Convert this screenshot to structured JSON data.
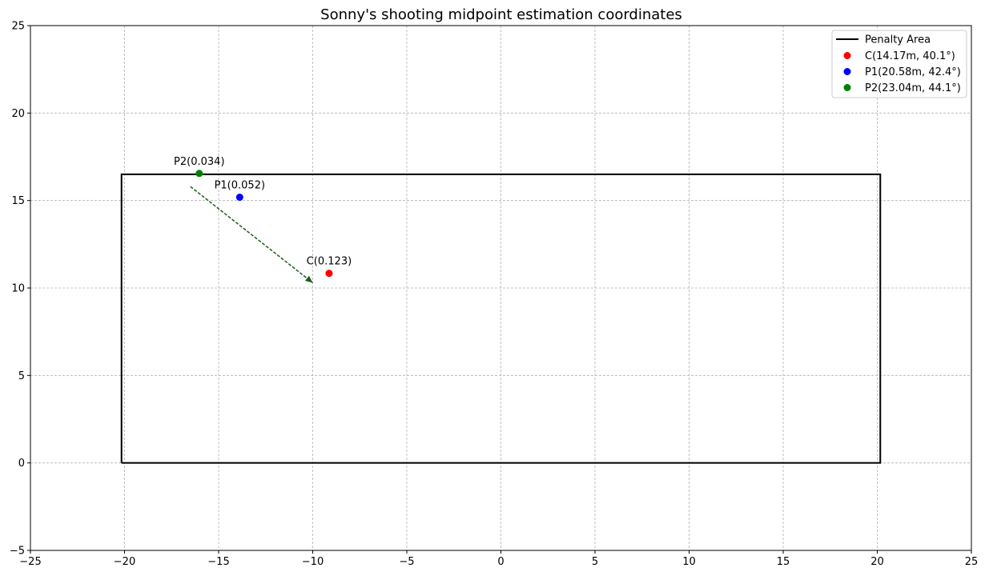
{
  "chart_data": {
    "type": "scatter",
    "title": "Sonny's shooting midpoint estimation coordinates",
    "xlabel": "",
    "ylabel": "",
    "xlim": [
      -25,
      25
    ],
    "ylim": [
      -5,
      25
    ],
    "xticks": [
      -25,
      -20,
      -15,
      -10,
      -5,
      0,
      5,
      10,
      15,
      20,
      25
    ],
    "yticks": [
      -5,
      0,
      5,
      10,
      15,
      20,
      25
    ],
    "x_tick_labels": [
      "−25",
      "−20",
      "−15",
      "−10",
      "−5",
      "0",
      "5",
      "10",
      "15",
      "20",
      "25"
    ],
    "y_tick_labels": [
      "−5",
      "0",
      "5",
      "10",
      "15",
      "20",
      "25"
    ],
    "grid": true,
    "legend_position": "top-right",
    "penalty_area": {
      "name": "Penalty Area",
      "color": "#000000",
      "x": [
        -20.16,
        20.16,
        20.16,
        -20.16,
        -20.16
      ],
      "y": [
        0,
        0,
        16.5,
        16.5,
        0
      ]
    },
    "points": [
      {
        "id": "c",
        "legend": "C(14.17m, 40.1°)",
        "label": "C(0.123)",
        "x": -9.13,
        "y": 10.84,
        "color": "#ff0000"
      },
      {
        "id": "p1",
        "legend": "P1(20.58m, 42.4°)",
        "label": "P1(0.052)",
        "x": -13.88,
        "y": 15.19,
        "color": "#0000ff"
      },
      {
        "id": "p2",
        "legend": "P2(23.04m, 44.1°)",
        "label": "P2(0.034)",
        "x": -16.03,
        "y": 16.55,
        "color": "#008000"
      }
    ],
    "arrow": {
      "color": "#1a5e1a",
      "style": "dashed",
      "from": [
        -16.5,
        15.8
      ],
      "to": [
        -10.0,
        10.3
      ]
    }
  }
}
